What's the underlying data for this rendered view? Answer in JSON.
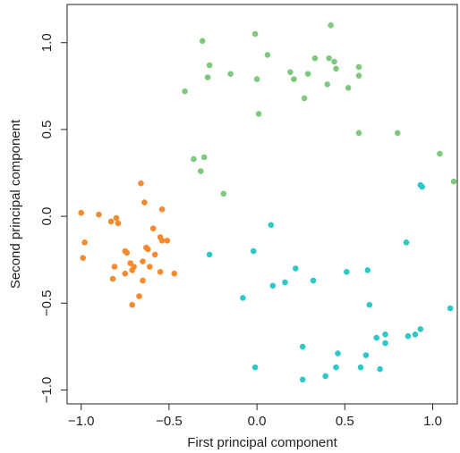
{
  "chart_data": {
    "type": "scatter",
    "xlabel": "First principal component",
    "ylabel": "Second principal component",
    "xlim": [
      -1.08,
      1.14
    ],
    "ylim": [
      -1.08,
      1.22
    ],
    "xticks": [
      -1.0,
      -0.5,
      0.0,
      0.5,
      1.0
    ],
    "xtick_labels": [
      "−1.0",
      "−0.5",
      "0.0",
      "0.5",
      "1.0"
    ],
    "yticks": [
      -1.0,
      -0.5,
      0.0,
      0.5,
      1.0
    ],
    "ytick_labels": [
      "−1.0",
      "−0.5",
      "0.0",
      "0.5",
      "1.0"
    ],
    "grid": false,
    "legend": "none",
    "series": [
      {
        "color": "#7fc97f",
        "points": [
          [
            -0.31,
            1.01
          ],
          [
            -0.01,
            1.05
          ],
          [
            0.42,
            1.1
          ],
          [
            -0.27,
            0.87
          ],
          [
            0.06,
            0.93
          ],
          [
            0.33,
            0.91
          ],
          [
            0.41,
            0.91
          ],
          [
            0.44,
            0.89
          ],
          [
            0.45,
            0.85
          ],
          [
            0.58,
            0.86
          ],
          [
            -0.15,
            0.82
          ],
          [
            0.19,
            0.83
          ],
          [
            0.29,
            0.82
          ],
          [
            0.21,
            0.79
          ],
          [
            0.58,
            0.81
          ],
          [
            -0.28,
            0.8
          ],
          [
            0.0,
            0.79
          ],
          [
            0.4,
            0.76
          ],
          [
            0.52,
            0.74
          ],
          [
            -0.41,
            0.72
          ],
          [
            0.27,
            0.68
          ],
          [
            0.01,
            0.59
          ],
          [
            0.58,
            0.48
          ],
          [
            0.8,
            0.48
          ],
          [
            -0.36,
            0.33
          ],
          [
            -0.3,
            0.34
          ],
          [
            -0.32,
            0.26
          ],
          [
            1.04,
            0.36
          ],
          [
            1.12,
            0.2
          ],
          [
            -0.19,
            0.13
          ]
        ]
      },
      {
        "color": "#f58a2e",
        "points": [
          [
            -1.0,
            0.02
          ],
          [
            -0.9,
            0.01
          ],
          [
            -0.83,
            -0.03
          ],
          [
            -0.8,
            -0.01
          ],
          [
            -0.79,
            -0.04
          ],
          [
            -0.66,
            0.19
          ],
          [
            -0.64,
            0.08
          ],
          [
            -0.59,
            -0.07
          ],
          [
            -0.54,
            0.04
          ],
          [
            -0.98,
            -0.15
          ],
          [
            -0.55,
            -0.12
          ],
          [
            -0.54,
            -0.14
          ],
          [
            -0.51,
            -0.14
          ],
          [
            -0.63,
            -0.18
          ],
          [
            -0.62,
            -0.19
          ],
          [
            -0.58,
            -0.22
          ],
          [
            -0.75,
            -0.2
          ],
          [
            -0.74,
            -0.21
          ],
          [
            -0.99,
            -0.24
          ],
          [
            -0.72,
            -0.27
          ],
          [
            -0.7,
            -0.29
          ],
          [
            -0.81,
            -0.29
          ],
          [
            -0.65,
            -0.26
          ],
          [
            -0.71,
            -0.31
          ],
          [
            -0.75,
            -0.33
          ],
          [
            -0.61,
            -0.29
          ],
          [
            -0.55,
            -0.32
          ],
          [
            -0.47,
            -0.33
          ],
          [
            -0.82,
            -0.36
          ],
          [
            -0.65,
            -0.37
          ],
          [
            -0.67,
            -0.46
          ],
          [
            -0.71,
            -0.51
          ]
        ]
      },
      {
        "color": "#2ec8c8",
        "points": [
          [
            0.93,
            0.18
          ],
          [
            0.94,
            0.17
          ],
          [
            0.08,
            -0.05
          ],
          [
            -0.02,
            -0.2
          ],
          [
            0.85,
            -0.15
          ],
          [
            -0.27,
            -0.22
          ],
          [
            0.22,
            -0.3
          ],
          [
            0.51,
            -0.32
          ],
          [
            0.63,
            -0.31
          ],
          [
            0.16,
            -0.38
          ],
          [
            0.09,
            -0.4
          ],
          [
            0.32,
            -0.37
          ],
          [
            -0.08,
            -0.47
          ],
          [
            0.64,
            -0.51
          ],
          [
            1.1,
            -0.53
          ],
          [
            0.73,
            -0.68
          ],
          [
            0.86,
            -0.69
          ],
          [
            0.9,
            -0.68
          ],
          [
            0.93,
            -0.65
          ],
          [
            0.68,
            -0.7
          ],
          [
            0.73,
            -0.73
          ],
          [
            0.26,
            -0.75
          ],
          [
            0.46,
            -0.79
          ],
          [
            0.62,
            -0.8
          ],
          [
            0.45,
            -0.87
          ],
          [
            0.59,
            -0.87
          ],
          [
            0.7,
            -0.88
          ],
          [
            -0.01,
            -0.87
          ],
          [
            0.39,
            -0.92
          ],
          [
            0.26,
            -0.94
          ]
        ]
      }
    ]
  }
}
